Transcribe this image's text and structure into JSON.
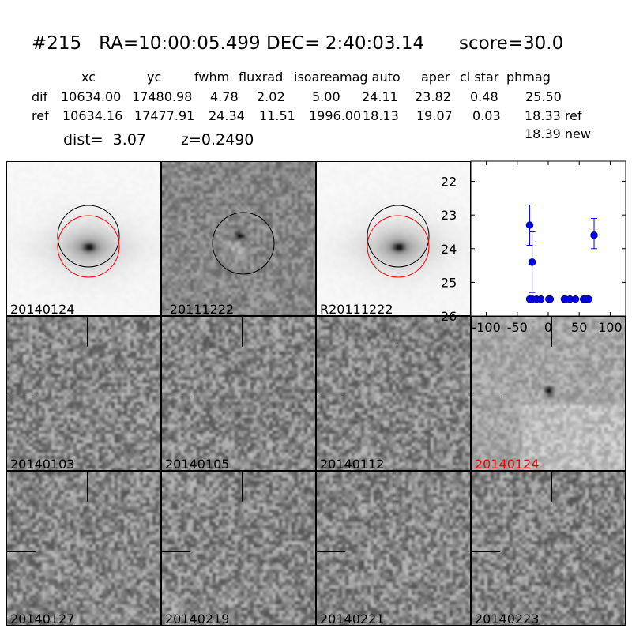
{
  "title": "#215   RA=10:00:05.499 DEC= 2:40:03.14      score=30.0",
  "table": {
    "headers": [
      "xc",
      "yc",
      "fwhm",
      "fluxrad",
      "isoarea",
      "mag auto",
      "aper",
      "cl star",
      "phmag"
    ],
    "dif": {
      "label": "dif",
      "values": [
        "10634.00",
        "17480.98",
        "4.78",
        "2.02",
        "5.00",
        "24.11",
        "23.82",
        "0.48",
        "25.50"
      ]
    },
    "ref": {
      "label": "ref",
      "values": [
        "10634.16",
        "17477.91",
        "24.34",
        "11.51",
        "1996.00",
        "18.13",
        "19.07",
        "0.03",
        "18.33 ref"
      ]
    },
    "new": "18.39 new"
  },
  "dist": "dist=  3.07",
  "z": "z=0.2490",
  "stamps": [
    {
      "label": "20140124",
      "kind": "galaxy"
    },
    {
      "label": "-20111222",
      "kind": "diff"
    },
    {
      "label": "R20111222",
      "kind": "galaxy"
    },
    {
      "label": "20140103",
      "kind": "noise"
    },
    {
      "label": "20140105",
      "kind": "noise"
    },
    {
      "label": "20140112",
      "kind": "noise"
    },
    {
      "label": "20140124",
      "kind": "detect",
      "color": "#ff0000"
    },
    {
      "label": "20140127",
      "kind": "noise"
    },
    {
      "label": "20140219",
      "kind": "noise"
    },
    {
      "label": "20140221",
      "kind": "noise"
    },
    {
      "label": "20140223",
      "kind": "noise"
    }
  ],
  "chart_data": {
    "type": "scatter",
    "xlim": [
      -125,
      125
    ],
    "ylim": [
      26,
      21.4
    ],
    "y_inverted": true,
    "xticks": [
      "-100",
      "-50",
      "0",
      "50",
      "100"
    ],
    "yticks": [
      "22",
      "23",
      "24",
      "25",
      "26"
    ],
    "color": "#0000ff",
    "points": [
      {
        "x": -30,
        "y": 23.3,
        "lo": 22.7,
        "hi": 23.9
      },
      {
        "x": -26,
        "y": 24.4,
        "lo": 23.5,
        "hi": 25.3
      },
      {
        "x": -30,
        "y": 25.5
      },
      {
        "x": -26,
        "y": 25.5
      },
      {
        "x": -19,
        "y": 25.5
      },
      {
        "x": -12,
        "y": 25.5
      },
      {
        "x": 1,
        "y": 25.5
      },
      {
        "x": 3,
        "y": 25.5
      },
      {
        "x": 26,
        "y": 25.5
      },
      {
        "x": 28,
        "y": 25.5
      },
      {
        "x": 35,
        "y": 25.5
      },
      {
        "x": 44,
        "y": 25.5
      },
      {
        "x": 57,
        "y": 25.5
      },
      {
        "x": 61,
        "y": 25.5
      },
      {
        "x": 65,
        "y": 25.5
      },
      {
        "x": 74,
        "y": 23.6,
        "lo": 23.1,
        "hi": 24.0
      }
    ]
  }
}
